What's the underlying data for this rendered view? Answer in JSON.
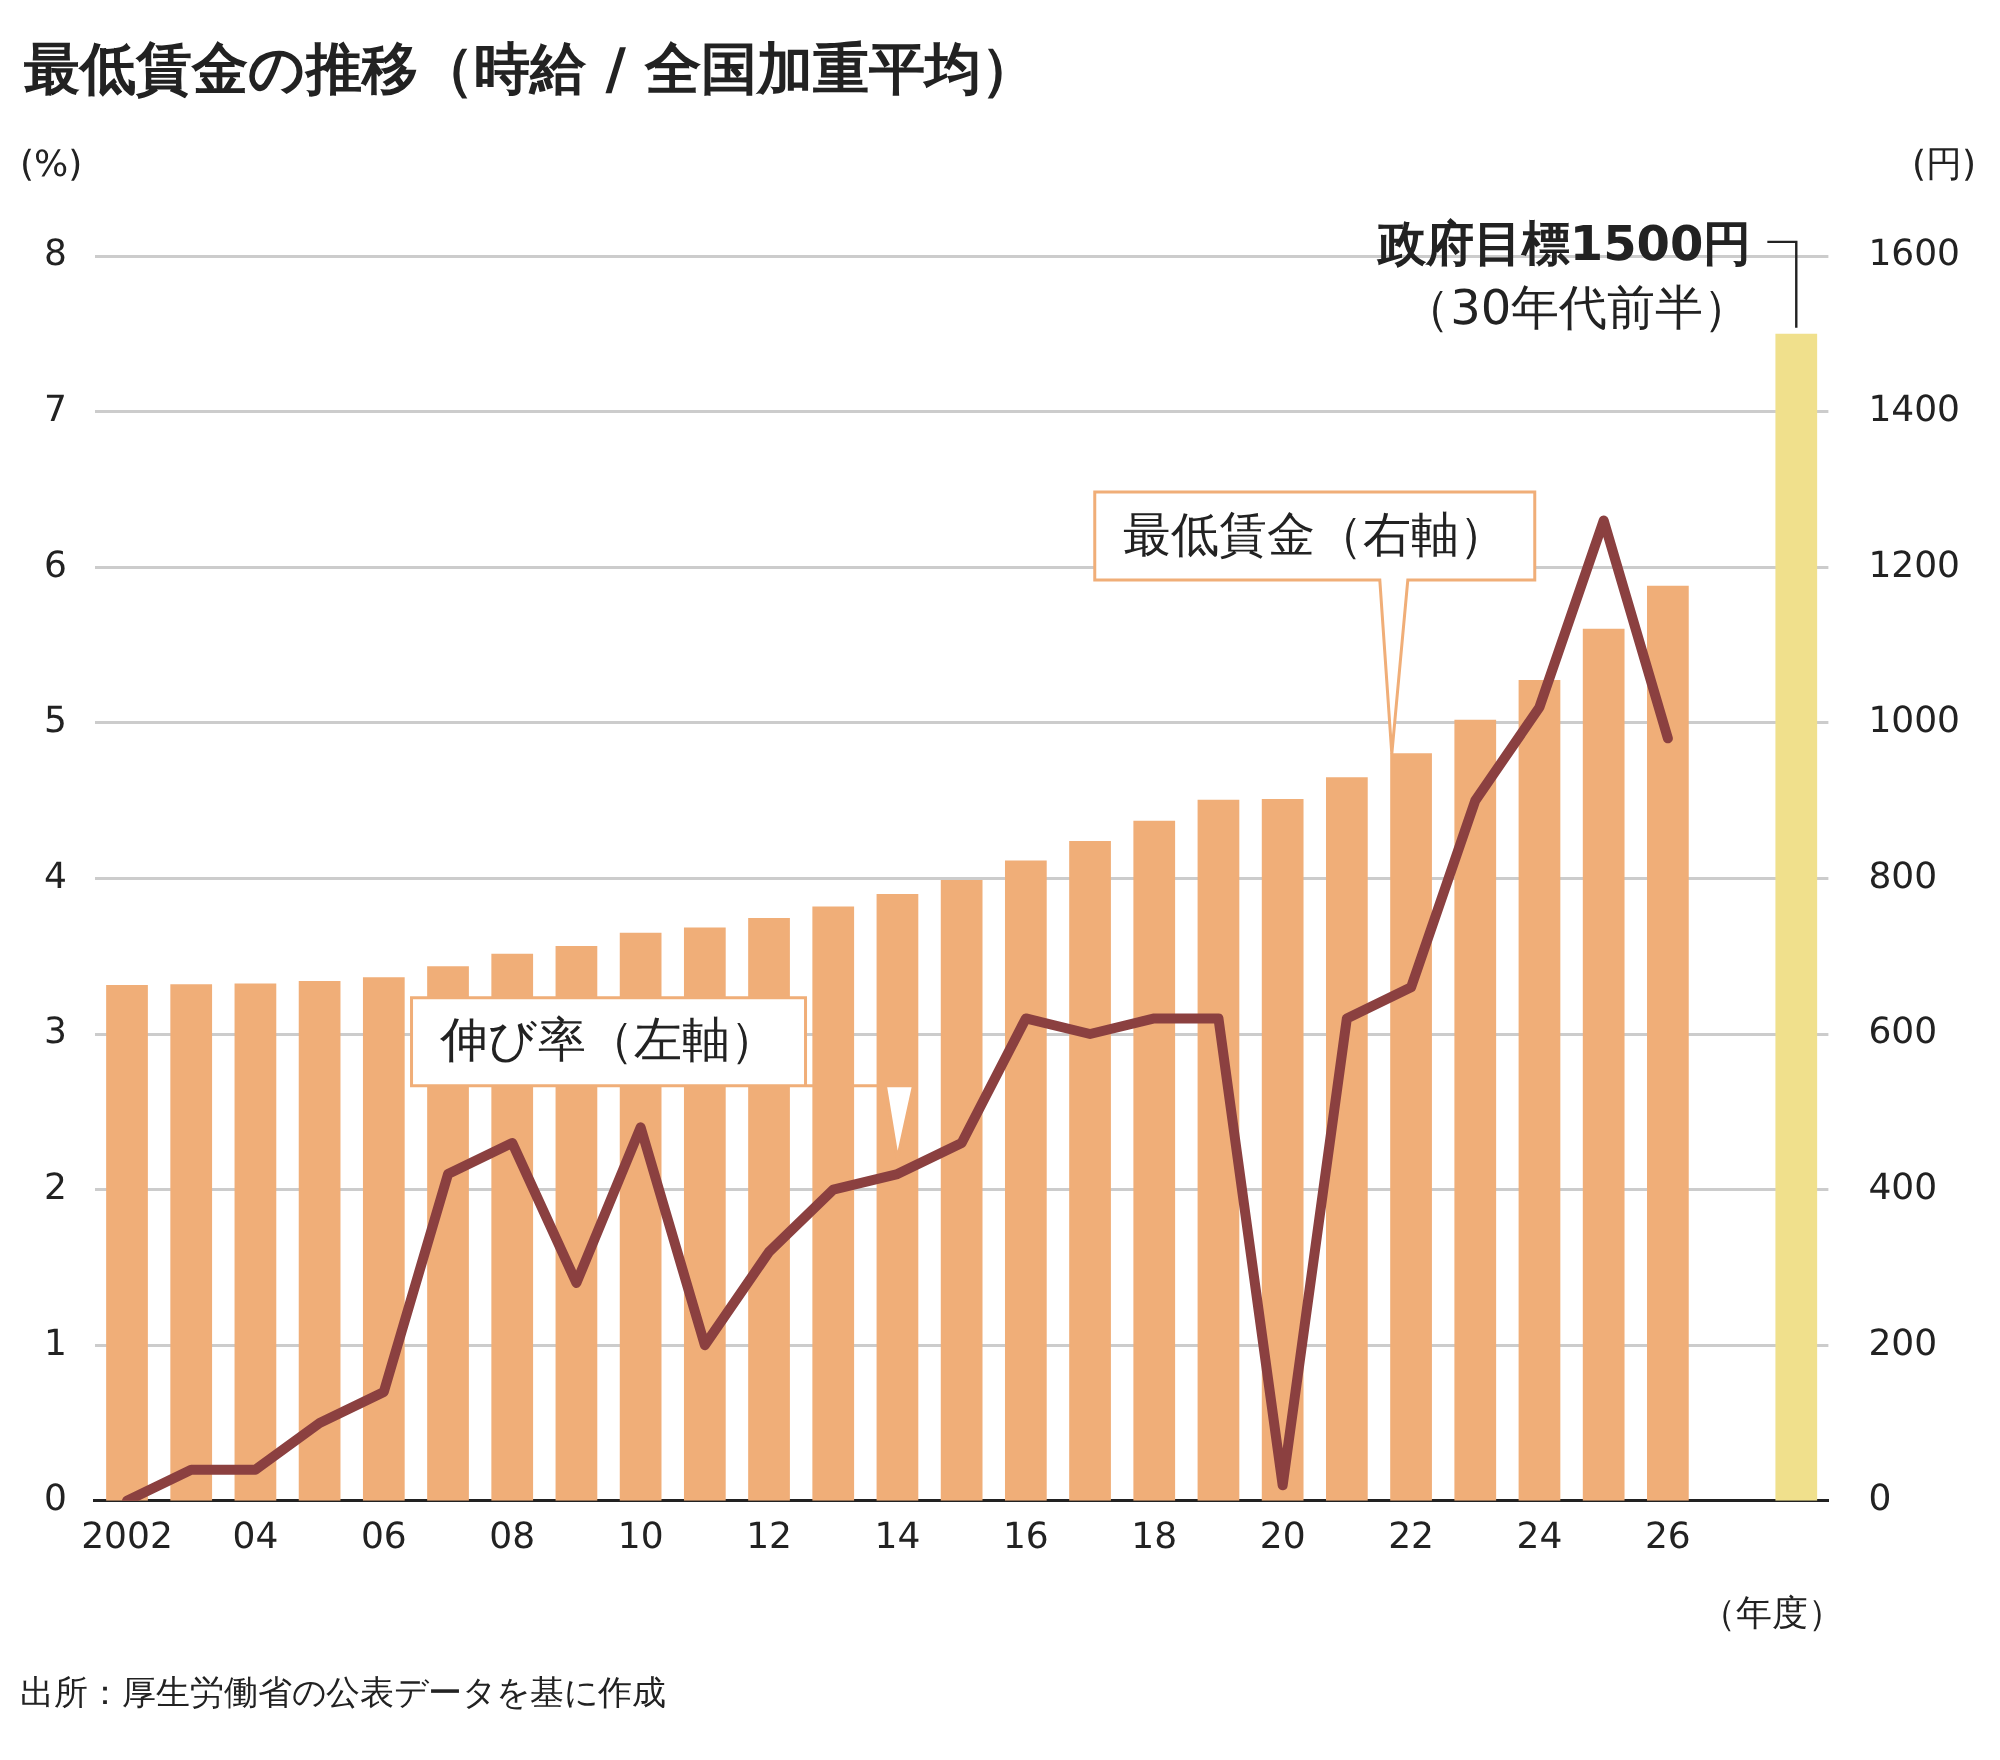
{
  "chart_data": {
    "type": "bar",
    "title": "最低賃金の推移（時給 / 全国加重平均）",
    "ylabel": "(%)",
    "y2label": "(円)",
    "xlabel": "（年度）",
    "categories": [
      "2002",
      null,
      "04",
      null,
      "06",
      null,
      "08",
      null,
      "10",
      null,
      "12",
      null,
      "14",
      null,
      "16",
      null,
      "18",
      null,
      "20",
      null,
      "22",
      null,
      "24",
      null,
      "26",
      null,
      null
    ],
    "series": [
      {
        "axis": "y2",
        "colors": [
          "#f0ae78",
          "#f0ae78",
          "#f0ae78",
          "#f0ae78",
          "#f0ae78",
          "#f0ae78",
          "#f0ae78",
          "#f0ae78",
          "#f0ae78",
          "#f0ae78",
          "#f0ae78",
          "#f0ae78",
          "#f0ae78",
          "#f0ae78",
          "#f0ae78",
          "#f0ae78",
          "#f0ae78",
          "#f0ae78",
          "#f0ae78",
          "#f0ae78",
          "#f0ae78",
          "#f0ae78",
          "#f0ae78",
          "#f0ae78",
          "#f0ae78",
          "#f0ae78",
          "#f0e08c"
        ],
        "values": [
          663,
          664,
          665,
          668,
          673,
          687,
          703,
          713,
          730,
          737,
          749,
          764,
          780,
          798,
          823,
          848,
          874,
          901,
          902,
          930,
          961,
          1004,
          1055,
          1121,
          1176,
          null,
          1500
        ]
      },
      {
        "type": "line",
        "axis": "y",
        "color": "#8b4040",
        "values": [
          0,
          0.2,
          0.2,
          0.5,
          0.7,
          2.1,
          2.3,
          1.4,
          2.4,
          1.0,
          1.6,
          2.0,
          2.1,
          2.3,
          3.1,
          3.0,
          3.1,
          3.1,
          0.1,
          3.1,
          3.3,
          4.5,
          5.1,
          6.3,
          4.9,
          null,
          null
        ]
      }
    ],
    "ylim": [
      0,
      8
    ],
    "yticks": [
      0,
      1,
      2,
      3,
      4,
      5,
      6,
      7,
      8
    ],
    "y2lim": [
      0,
      1600
    ],
    "y2ticks": [
      0,
      200,
      400,
      600,
      800,
      {
        "value": 1000,
        "label": "1000"
      },
      {
        "value": 1200,
        "label": "1200"
      },
      {
        "value": 1400,
        "label": "1400"
      },
      {
        "value": 1600,
        "label": "1600"
      }
    ],
    "grid": "y",
    "legend": false,
    "marker": "none",
    "line_style": "solid",
    "annotations": [
      "最低賃金（右軸）",
      "伸び率（左軸）",
      "政府目標1500円（30年代前半）",
      "出所：厚生労働省の公表データを基に作成"
    ]
  }
}
